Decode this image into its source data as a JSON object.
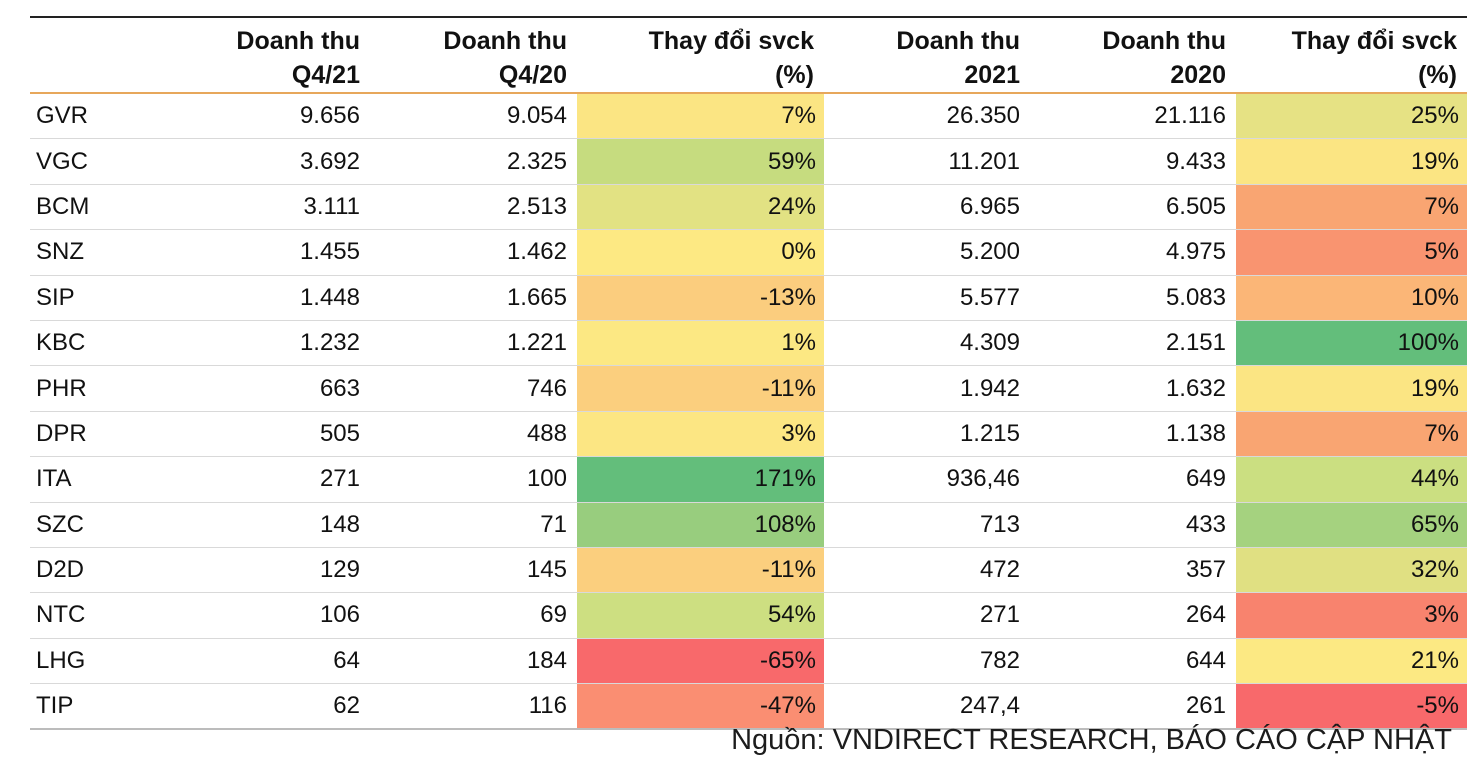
{
  "header": {
    "ticker": "",
    "q421": [
      "Doanh thu",
      "Q4/21"
    ],
    "q420": [
      "Doanh thu",
      "Q4/20"
    ],
    "chg_q": [
      "Thay đổi svck",
      "(%)"
    ],
    "y2021": [
      "Doanh thu",
      "2021"
    ],
    "y2020": [
      "Doanh thu",
      "2020"
    ],
    "chg_y": [
      "Thay đổi svck",
      "(%)"
    ]
  },
  "rows": [
    {
      "ticker": "GVR",
      "q421": "9.656",
      "q420": "9.054",
      "chg_q": "7%",
      "y2021": "26.350",
      "y2020": "21.116",
      "chg_y": "25%"
    },
    {
      "ticker": "VGC",
      "q421": "3.692",
      "q420": "2.325",
      "chg_q": "59%",
      "y2021": "11.201",
      "y2020": "9.433",
      "chg_y": "19%"
    },
    {
      "ticker": "BCM",
      "q421": "3.111",
      "q420": "2.513",
      "chg_q": "24%",
      "y2021": "6.965",
      "y2020": "6.505",
      "chg_y": "7%"
    },
    {
      "ticker": "SNZ",
      "q421": "1.455",
      "q420": "1.462",
      "chg_q": "0%",
      "y2021": "5.200",
      "y2020": "4.975",
      "chg_y": "5%"
    },
    {
      "ticker": "SIP",
      "q421": "1.448",
      "q420": "1.665",
      "chg_q": "-13%",
      "y2021": "5.577",
      "y2020": "5.083",
      "chg_y": "10%"
    },
    {
      "ticker": "KBC",
      "q421": "1.232",
      "q420": "1.221",
      "chg_q": "1%",
      "y2021": "4.309",
      "y2020": "2.151",
      "chg_y": "100%"
    },
    {
      "ticker": "PHR",
      "q421": "663",
      "q420": "746",
      "chg_q": "-11%",
      "y2021": "1.942",
      "y2020": "1.632",
      "chg_y": "19%"
    },
    {
      "ticker": "DPR",
      "q421": "505",
      "q420": "488",
      "chg_q": "3%",
      "y2021": "1.215",
      "y2020": "1.138",
      "chg_y": "7%"
    },
    {
      "ticker": "ITA",
      "q421": "271",
      "q420": "100",
      "chg_q": "171%",
      "y2021": "936,46",
      "y2020": "649",
      "chg_y": "44%"
    },
    {
      "ticker": "SZC",
      "q421": "148",
      "q420": "71",
      "chg_q": "108%",
      "y2021": "713",
      "y2020": "433",
      "chg_y": "65%"
    },
    {
      "ticker": "D2D",
      "q421": "129",
      "q420": "145",
      "chg_q": "-11%",
      "y2021": "472",
      "y2020": "357",
      "chg_y": "32%"
    },
    {
      "ticker": "NTC",
      "q421": "106",
      "q420": "69",
      "chg_q": "54%",
      "y2021": "271",
      "y2020": "264",
      "chg_y": "3%"
    },
    {
      "ticker": "LHG",
      "q421": "64",
      "q420": "184",
      "chg_q": "-65%",
      "y2021": "782",
      "y2020": "644",
      "chg_y": "21%"
    },
    {
      "ticker": "TIP",
      "q421": "62",
      "q420": "116",
      "chg_q": "-47%",
      "y2021": "247,4",
      "y2020": "261",
      "chg_y": "-5%"
    }
  ],
  "cell_colors": {
    "chg_q": [
      "#fbe583",
      "#c6dc7f",
      "#e2e283",
      "#fde983",
      "#fbcd7e",
      "#fce883",
      "#fbcf7e",
      "#fce683",
      "#63be7b",
      "#98cd7e",
      "#fbcf7e",
      "#cddf81",
      "#f8696b",
      "#fa8e72"
    ],
    "chg_y": [
      "#e6e284",
      "#fbe583",
      "#f9a572",
      "#f99470",
      "#fbb677",
      "#63be7b",
      "#fbe583",
      "#f9a572",
      "#cbdf81",
      "#a5d27f",
      "#e0e082",
      "#f8836e",
      "#fce983",
      "#f8696b"
    ]
  },
  "chart_data": {
    "type": "table",
    "title": "",
    "columns": [
      "",
      "Doanh thu Q4/21",
      "Doanh thu Q4/20",
      "Thay đổi svck (%)",
      "Doanh thu 2021",
      "Doanh thu 2020",
      "Thay đổi svck (%)"
    ],
    "rows": [
      [
        "GVR",
        "9.656",
        "9.054",
        "7%",
        "26.350",
        "21.116",
        "25%"
      ],
      [
        "VGC",
        "3.692",
        "2.325",
        "59%",
        "11.201",
        "9.433",
        "19%"
      ],
      [
        "BCM",
        "3.111",
        "2.513",
        "24%",
        "6.965",
        "6.505",
        "7%"
      ],
      [
        "SNZ",
        "1.455",
        "1.462",
        "0%",
        "5.200",
        "4.975",
        "5%"
      ],
      [
        "SIP",
        "1.448",
        "1.665",
        "-13%",
        "5.577",
        "5.083",
        "10%"
      ],
      [
        "KBC",
        "1.232",
        "1.221",
        "1%",
        "4.309",
        "2.151",
        "100%"
      ],
      [
        "PHR",
        "663",
        "746",
        "-11%",
        "1.942",
        "1.632",
        "19%"
      ],
      [
        "DPR",
        "505",
        "488",
        "3%",
        "1.215",
        "1.138",
        "7%"
      ],
      [
        "ITA",
        "271",
        "100",
        "171%",
        "936,46",
        "649",
        "44%"
      ],
      [
        "SZC",
        "148",
        "71",
        "108%",
        "713",
        "433",
        "65%"
      ],
      [
        "D2D",
        "129",
        "145",
        "-11%",
        "472",
        "357",
        "32%"
      ],
      [
        "NTC",
        "106",
        "69",
        "54%",
        "271",
        "264",
        "3%"
      ],
      [
        "LHG",
        "64",
        "184",
        "-65%",
        "782",
        "644",
        "21%"
      ],
      [
        "TIP",
        "62",
        "116",
        "-47%",
        "247,4",
        "261",
        "-5%"
      ]
    ]
  },
  "source": "Nguồn: VNDIRECT RESEARCH, BÁO CÁO CẬP NHẬT"
}
